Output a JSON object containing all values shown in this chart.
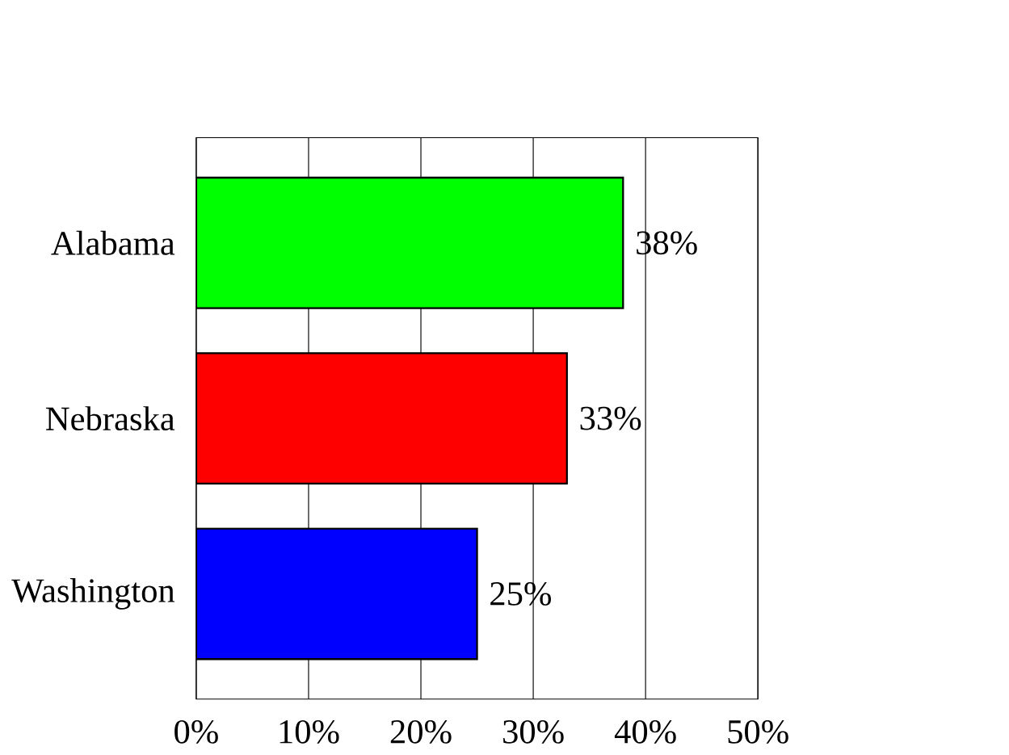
{
  "chart_data": {
    "type": "bar",
    "orientation": "horizontal",
    "categories": [
      "Alabama",
      "Nebraska",
      "Washington"
    ],
    "values": [
      38,
      33,
      25
    ],
    "colors": [
      "#00ff00",
      "#ff0000",
      "#0000ff"
    ],
    "value_labels": [
      "38%",
      "33%",
      "25%"
    ],
    "xlim": [
      0,
      50
    ],
    "xticks": [
      {
        "value": 0,
        "label": "0%"
      },
      {
        "value": 10,
        "label": "10%"
      },
      {
        "value": 20,
        "label": "20%"
      },
      {
        "value": 30,
        "label": "30%"
      },
      {
        "value": 40,
        "label": "40%"
      },
      {
        "value": 50,
        "label": "50%"
      }
    ],
    "grid": "x"
  }
}
